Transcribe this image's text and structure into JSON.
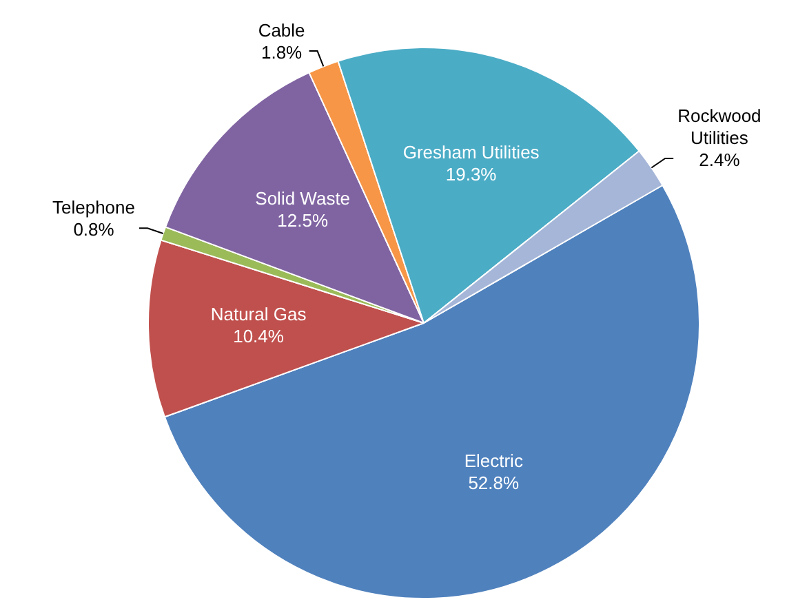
{
  "chart_data": {
    "type": "pie",
    "categories": [
      "Electric",
      "Natural Gas",
      "Telephone",
      "Solid Waste",
      "Cable",
      "Gresham Utilities",
      "Rockwood Utilities"
    ],
    "values": [
      52.8,
      10.4,
      0.8,
      12.5,
      1.8,
      19.3,
      2.4
    ],
    "value_labels": [
      "52.8%",
      "10.4%",
      "0.8%",
      "12.5%",
      "1.8%",
      "19.3%",
      "2.4%"
    ],
    "colors": [
      "#4f81bd",
      "#c0504d",
      "#9bbb59",
      "#8064a2",
      "#f79646",
      "#4bacc6",
      "#a5b6d8"
    ],
    "legend": false
  }
}
